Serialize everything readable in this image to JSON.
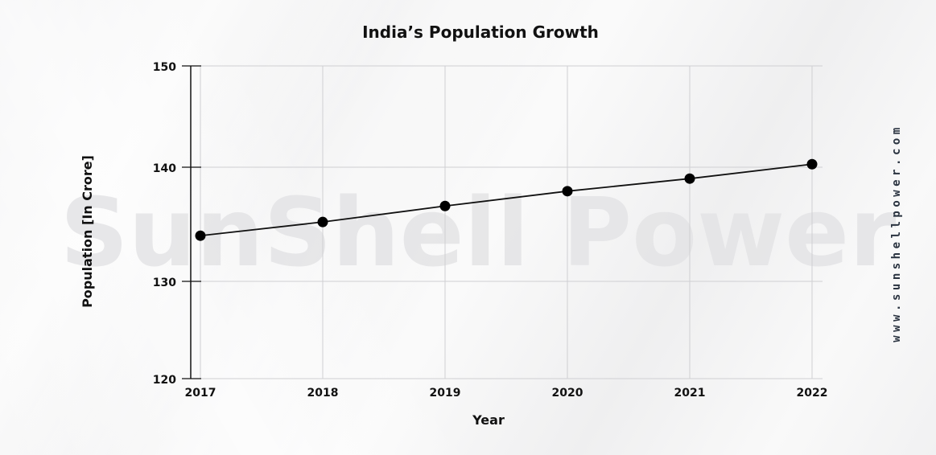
{
  "chart_data": {
    "type": "line",
    "title": "India’s Population Growth",
    "xlabel": "Year",
    "ylabel": "Population [In Crore]",
    "categories": [
      "2017",
      "2018",
      "2019",
      "2020",
      "2021",
      "2022"
    ],
    "series": [
      {
        "values": [
          134.0,
          135.2,
          136.6,
          137.9,
          139.0,
          140.3
        ]
      }
    ],
    "ylim": [
      120,
      150
    ],
    "yticks": [
      "150",
      "140",
      "130",
      "120"
    ],
    "grid": true,
    "line_color": "#111111",
    "marker_color": "#000000"
  },
  "watermark": "SunShell Power",
  "site": "www.sunshellpower.com"
}
